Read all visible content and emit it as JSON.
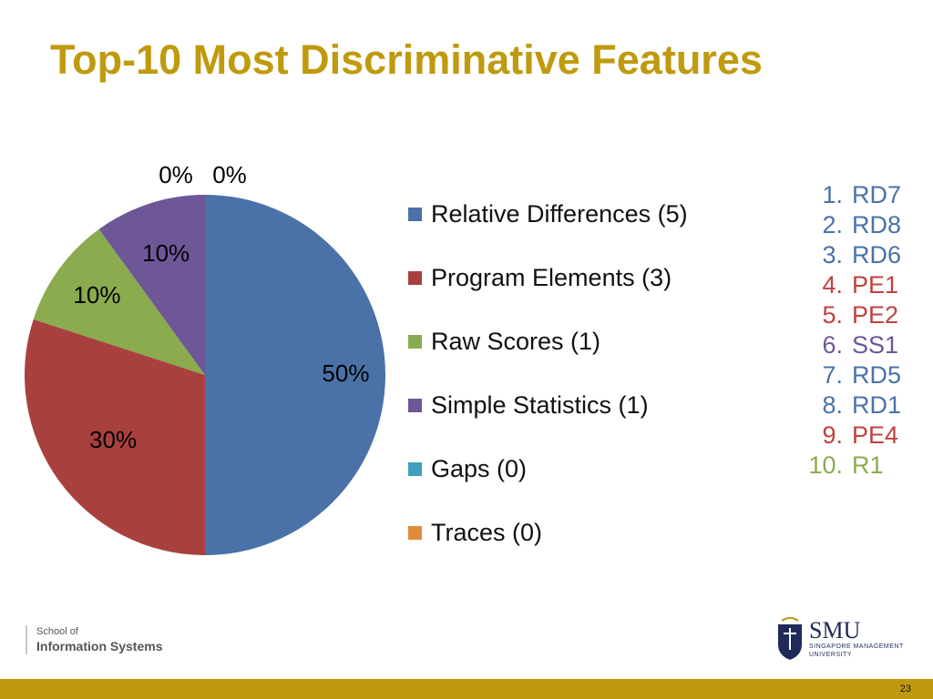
{
  "slide": {
    "title": "Top-10 Most Discriminative Features",
    "page_number": "23"
  },
  "chart_data": {
    "type": "pie",
    "categories": [
      "Relative Differences (5)",
      "Program Elements (3)",
      "Raw Scores (1)",
      "Simple Statistics (1)",
      "Gaps (0)",
      "Traces (0)"
    ],
    "values": [
      50,
      30,
      10,
      10,
      0,
      0
    ],
    "data_labels": [
      "50%",
      "30%",
      "10%",
      "10%",
      "0%",
      "0%"
    ],
    "colors": [
      "#4a72a8",
      "#a8413e",
      "#8bab4f",
      "#6e5797",
      "#3f9fbe",
      "#e08a3c"
    ],
    "legend_position": "right"
  },
  "ranking": [
    {
      "num": "1.",
      "label": "RD7",
      "color": "#4a72a8"
    },
    {
      "num": "2.",
      "label": "RD8",
      "color": "#4a72a8"
    },
    {
      "num": "3.",
      "label": "RD6",
      "color": "#4a72a8"
    },
    {
      "num": "4.",
      "label": "PE1",
      "color": "#c0413e"
    },
    {
      "num": "5.",
      "label": "PE2",
      "color": "#c0413e"
    },
    {
      "num": "6.",
      "label": "SS1",
      "color": "#6e5797"
    },
    {
      "num": "7.",
      "label": "RD5",
      "color": "#4a72a8"
    },
    {
      "num": "8.",
      "label": "RD1",
      "color": "#4a72a8"
    },
    {
      "num": "9.",
      "label": "PE4",
      "color": "#c0413e"
    },
    {
      "num": "10.",
      "label": "R1",
      "color": "#8bab4f"
    }
  ],
  "footer": {
    "school_line1": "School of",
    "school_line2": "Information Systems",
    "logo_name": "SMU",
    "logo_sub1": "SINGAPORE MANAGEMENT",
    "logo_sub2": "UNIVERSITY",
    "logo_icon": "smu-crest-icon"
  }
}
